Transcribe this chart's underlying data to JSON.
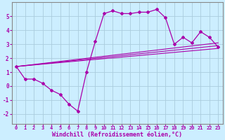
{
  "xlabel": "Windchill (Refroidissement éolien,°C)",
  "bg_color": "#cceeff",
  "grid_color": "#aaccdd",
  "line_color": "#aa00aa",
  "spine_color": "#888888",
  "xlim": [
    -0.5,
    23.5
  ],
  "ylim": [
    -2.7,
    6.0
  ],
  "xticks": [
    0,
    1,
    2,
    3,
    4,
    5,
    6,
    7,
    8,
    9,
    10,
    11,
    12,
    13,
    14,
    15,
    16,
    17,
    18,
    19,
    20,
    21,
    22,
    23
  ],
  "yticks": [
    -2,
    -1,
    0,
    1,
    2,
    3,
    4,
    5
  ],
  "main_x": [
    0,
    1,
    2,
    3,
    4,
    5,
    6,
    7,
    8,
    9,
    10,
    11,
    12,
    13,
    14,
    15,
    16,
    17,
    18,
    19,
    20,
    21,
    22,
    23
  ],
  "main_y": [
    1.4,
    0.5,
    0.5,
    0.2,
    -0.3,
    -0.6,
    -1.3,
    -1.8,
    1.0,
    3.2,
    5.2,
    5.4,
    5.2,
    5.2,
    5.3,
    5.3,
    5.5,
    4.9,
    3.0,
    3.5,
    3.1,
    3.9,
    3.5,
    2.8
  ],
  "line1_x": [
    0,
    23
  ],
  "line1_y": [
    1.4,
    2.9
  ],
  "line2_x": [
    0,
    23
  ],
  "line2_y": [
    1.4,
    2.7
  ],
  "line3_x": [
    0,
    23
  ],
  "line3_y": [
    1.4,
    3.1
  ],
  "xlabel_fontsize": 6.0,
  "tick_fontsize": 5.0,
  "ytick_fontsize": 5.5
}
